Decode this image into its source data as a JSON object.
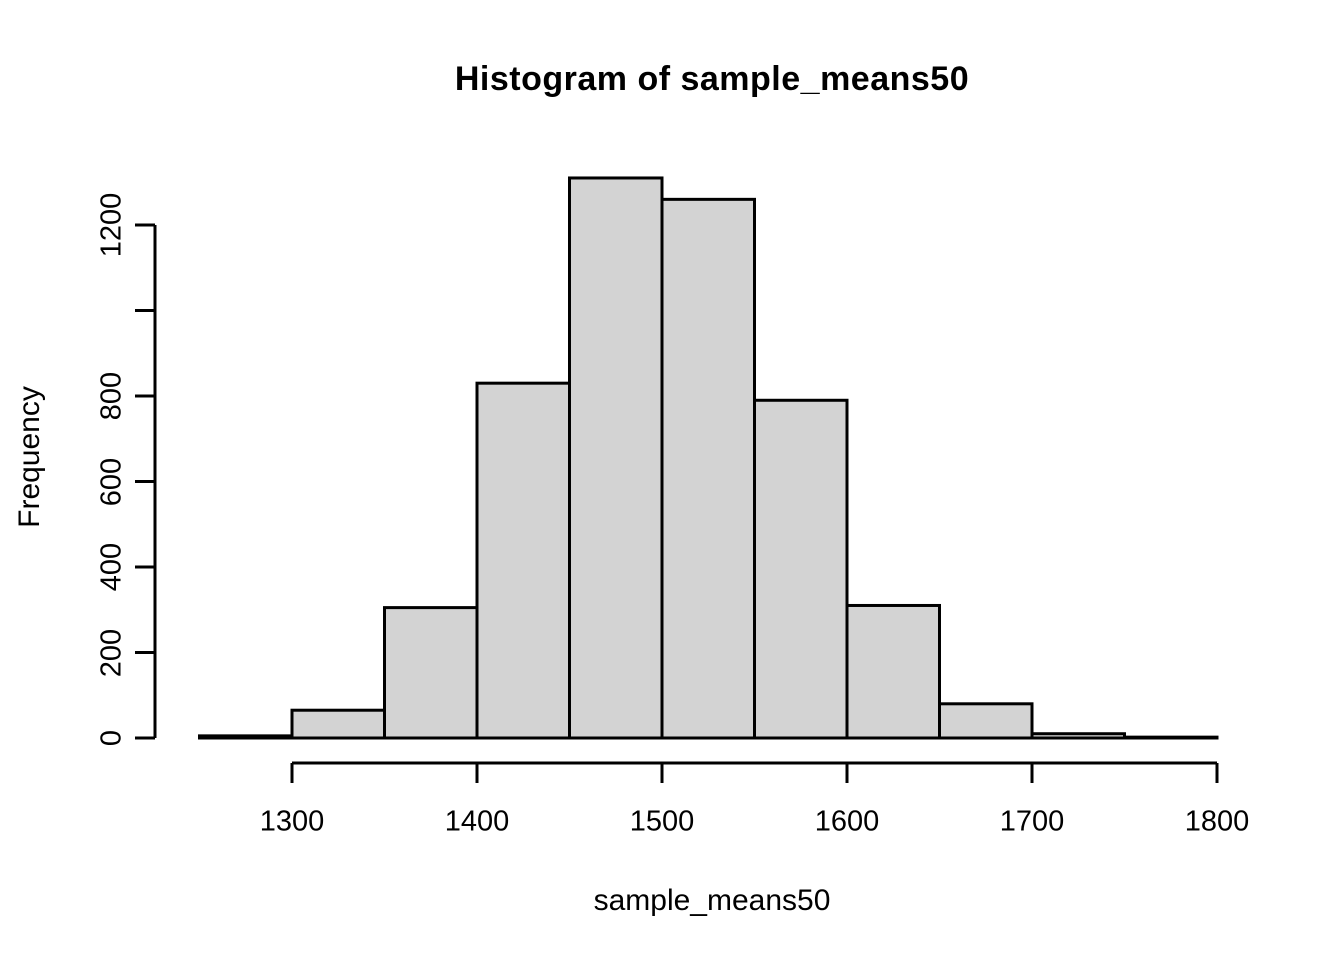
{
  "chart": {
    "title": "Histogram of sample_means50",
    "xlabel": "sample_means50",
    "ylabel": "Frequency",
    "bar_fill": "#d3d3d3",
    "bar_stroke": "#000000",
    "axis_color": "#000000"
  },
  "chart_data": {
    "type": "bar",
    "subtype": "histogram",
    "title": "Histogram of sample_means50",
    "xlabel": "sample_means50",
    "ylabel": "Frequency",
    "bin_width": 50,
    "bin_edges": [
      1250,
      1300,
      1350,
      1400,
      1450,
      1500,
      1550,
      1600,
      1650,
      1700,
      1750,
      1800
    ],
    "counts": [
      5,
      65,
      305,
      830,
      1310,
      1260,
      790,
      310,
      80,
      10,
      2
    ],
    "x_ticks": [
      {
        "value": 1300,
        "label": "1300"
      },
      {
        "value": 1400,
        "label": "1400"
      },
      {
        "value": 1500,
        "label": "1500"
      },
      {
        "value": 1600,
        "label": "1600"
      },
      {
        "value": 1700,
        "label": "1700"
      },
      {
        "value": 1800,
        "label": "1800"
      }
    ],
    "y_ticks": [
      {
        "value": 0,
        "label": "0"
      },
      {
        "value": 200,
        "label": "200"
      },
      {
        "value": 400,
        "label": "400"
      },
      {
        "value": 600,
        "label": "600"
      },
      {
        "value": 800,
        "label": "800"
      },
      {
        "value": 1000,
        "label": ""
      },
      {
        "value": 1200,
        "label": "1200"
      }
    ],
    "xlim": [
      1250,
      1800
    ],
    "ylim": [
      0,
      1310
    ],
    "grid": false,
    "legend": false
  }
}
